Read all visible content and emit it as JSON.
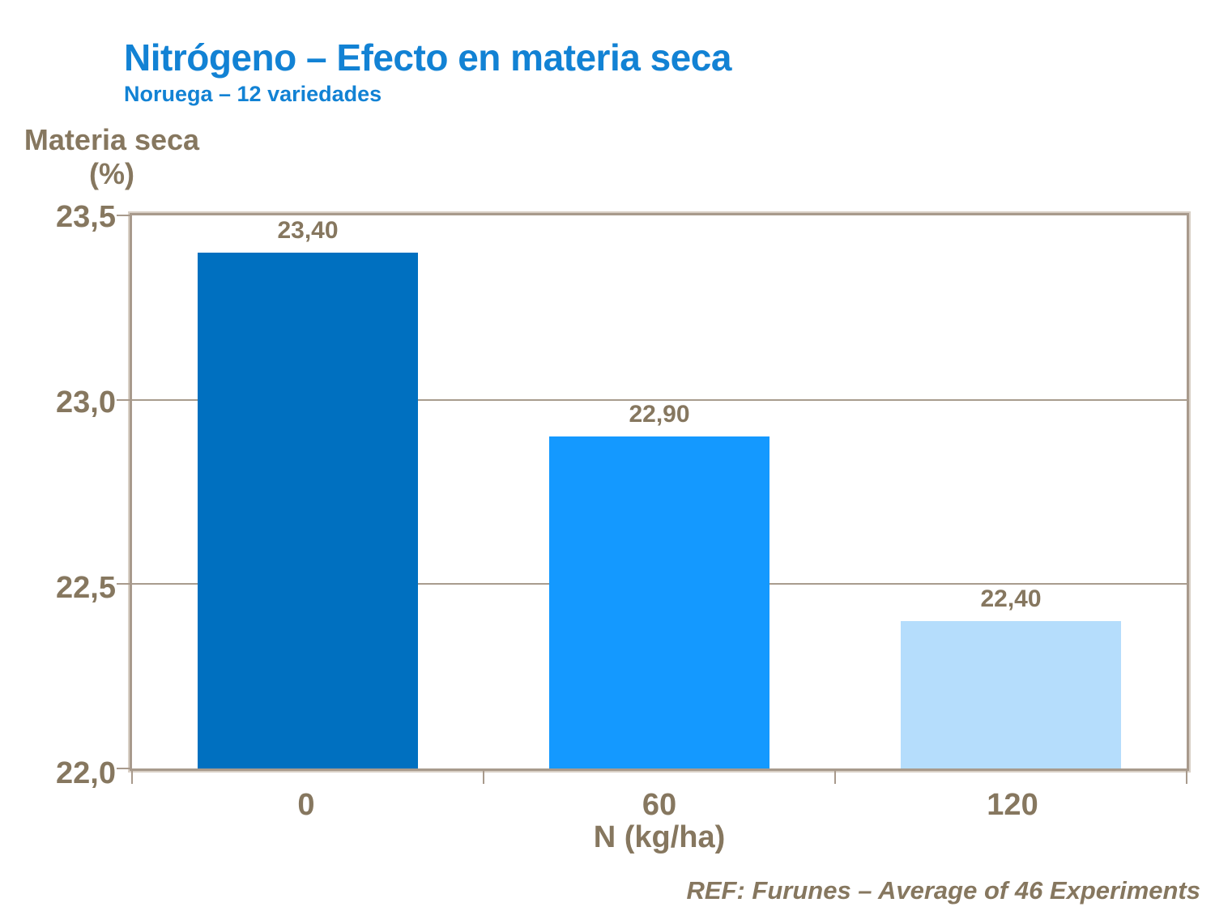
{
  "header": {
    "title": "Nitrógeno – Efecto en materia seca",
    "subtitle": "Noruega – 12 variedades"
  },
  "footer": {
    "reference": "REF: Furunes – Average of 46 Experiments"
  },
  "chart_data": {
    "type": "bar",
    "title": "Nitrógeno – Efecto en materia seca",
    "subtitle": "Noruega – 12 variedades",
    "categories": [
      "0",
      "60",
      "120"
    ],
    "values": [
      23.4,
      22.9,
      22.4
    ],
    "value_labels": [
      "23,40",
      "22,90",
      "22,40"
    ],
    "xlabel": "N (kg/ha)",
    "ylabel": "Materia seca (%)",
    "ylabel_line1": "Materia seca",
    "ylabel_line2": "(%)",
    "ylim": [
      22.0,
      23.5
    ],
    "ytick_values": [
      23.5,
      23.0,
      22.5,
      22.0
    ],
    "ytick_labels": [
      "23,5",
      "23,0",
      "22,5",
      "22,0"
    ],
    "grid": "horizontal",
    "legend": false,
    "bar_colors": [
      "#0070C0",
      "#1499FF",
      "#B5DDFC"
    ],
    "annotation": "REF: Furunes – Average of 46 Experiments"
  },
  "colors": {
    "title_blue": "#1282D4",
    "text_brown": "#86775F",
    "axis_border_dark": "#A89A8C",
    "axis_border_light": "#D9D0C6",
    "gridline": "#A89C8E",
    "background": "#FFFFFF"
  }
}
